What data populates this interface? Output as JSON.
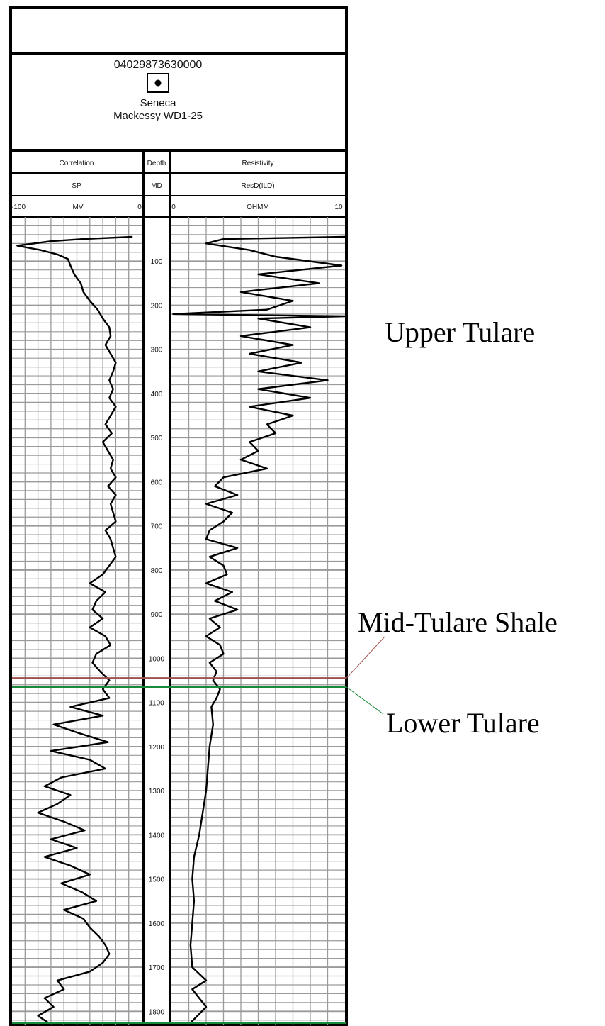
{
  "log_header": {
    "api_number": "04029873630000",
    "well_symbol": "oil-well-symbol",
    "operator": "Seneca",
    "well_name": "Mackessy WD1-25"
  },
  "tracks": {
    "correlation": {
      "title": "Correlation",
      "curve": "SP",
      "unit": "MV",
      "scale_left": "-100",
      "scale_right": "0"
    },
    "depth": {
      "title": "Depth",
      "curve": "MD"
    },
    "resistivity": {
      "title": "Resistivity",
      "curve": "ResD(ILD)",
      "unit": "OHMM",
      "scale_left": "0",
      "scale_right": "10"
    }
  },
  "zones": {
    "upper": "Upper Tulare",
    "mid_shale": "Mid-Tulare Shale",
    "lower": "Lower Tulare"
  },
  "colors": {
    "mid_shale_line": "#a0504c",
    "lower_tulare_line": "#1a8a3a",
    "grid": "#9a9a9a",
    "curve": "#000000"
  },
  "chart_data": {
    "type": "line",
    "x_axis": "depth",
    "depth_ticks": [
      100,
      200,
      300,
      400,
      500,
      600,
      700,
      800,
      900,
      1000,
      1100,
      1200,
      1300,
      1400,
      1500,
      1600,
      1700,
      1800
    ],
    "depth_range": [
      0,
      1830
    ],
    "series": [
      {
        "name": "SP",
        "unit": "MV",
        "range": [
          -100,
          0
        ],
        "points": [
          [
            45,
            -7
          ],
          [
            50,
            -45
          ],
          [
            55,
            -70
          ],
          [
            65,
            -96
          ],
          [
            75,
            -78
          ],
          [
            85,
            -65
          ],
          [
            95,
            -57
          ],
          [
            110,
            -55
          ],
          [
            130,
            -52
          ],
          [
            150,
            -47
          ],
          [
            170,
            -45
          ],
          [
            190,
            -40
          ],
          [
            210,
            -34
          ],
          [
            230,
            -30
          ],
          [
            250,
            -25
          ],
          [
            270,
            -24
          ],
          [
            290,
            -28
          ],
          [
            310,
            -24
          ],
          [
            330,
            -20
          ],
          [
            350,
            -22
          ],
          [
            370,
            -25
          ],
          [
            390,
            -22
          ],
          [
            410,
            -25
          ],
          [
            430,
            -20
          ],
          [
            450,
            -24
          ],
          [
            470,
            -28
          ],
          [
            490,
            -23
          ],
          [
            510,
            -30
          ],
          [
            530,
            -26
          ],
          [
            550,
            -22
          ],
          [
            570,
            -24
          ],
          [
            590,
            -20
          ],
          [
            610,
            -26
          ],
          [
            630,
            -20
          ],
          [
            650,
            -24
          ],
          [
            670,
            -22
          ],
          [
            690,
            -20
          ],
          [
            710,
            -28
          ],
          [
            730,
            -24
          ],
          [
            750,
            -22
          ],
          [
            770,
            -20
          ],
          [
            790,
            -25
          ],
          [
            810,
            -30
          ],
          [
            830,
            -40
          ],
          [
            850,
            -28
          ],
          [
            870,
            -35
          ],
          [
            890,
            -38
          ],
          [
            910,
            -30
          ],
          [
            930,
            -40
          ],
          [
            950,
            -28
          ],
          [
            970,
            -24
          ],
          [
            990,
            -35
          ],
          [
            1010,
            -38
          ],
          [
            1030,
            -32
          ],
          [
            1050,
            -25
          ],
          [
            1070,
            -30
          ],
          [
            1090,
            -25
          ],
          [
            1110,
            -55
          ],
          [
            1130,
            -30
          ],
          [
            1150,
            -68
          ],
          [
            1170,
            -48
          ],
          [
            1190,
            -26
          ],
          [
            1210,
            -70
          ],
          [
            1230,
            -40
          ],
          [
            1250,
            -28
          ],
          [
            1270,
            -62
          ],
          [
            1290,
            -75
          ],
          [
            1310,
            -55
          ],
          [
            1330,
            -65
          ],
          [
            1350,
            -80
          ],
          [
            1370,
            -60
          ],
          [
            1390,
            -44
          ],
          [
            1410,
            -70
          ],
          [
            1430,
            -50
          ],
          [
            1450,
            -75
          ],
          [
            1470,
            -55
          ],
          [
            1490,
            -40
          ],
          [
            1510,
            -62
          ],
          [
            1530,
            -46
          ],
          [
            1550,
            -35
          ],
          [
            1570,
            -60
          ],
          [
            1590,
            -45
          ],
          [
            1610,
            -40
          ],
          [
            1630,
            -33
          ],
          [
            1650,
            -28
          ],
          [
            1670,
            -25
          ],
          [
            1690,
            -30
          ],
          [
            1710,
            -40
          ],
          [
            1730,
            -65
          ],
          [
            1750,
            -60
          ],
          [
            1770,
            -75
          ],
          [
            1790,
            -68
          ],
          [
            1810,
            -80
          ],
          [
            1830,
            -70
          ]
        ]
      },
      {
        "name": "ResD(ILD)",
        "unit": "OHMM",
        "range": [
          0,
          10
        ],
        "points": [
          [
            45,
            10
          ],
          [
            50,
            3
          ],
          [
            60,
            2
          ],
          [
            75,
            4.5
          ],
          [
            90,
            6
          ],
          [
            110,
            9.8
          ],
          [
            130,
            5
          ],
          [
            150,
            8.5
          ],
          [
            170,
            4
          ],
          [
            190,
            7
          ],
          [
            210,
            5.5
          ],
          [
            220,
            0.1
          ],
          [
            225,
            10
          ],
          [
            230,
            5
          ],
          [
            250,
            8
          ],
          [
            270,
            4
          ],
          [
            290,
            7
          ],
          [
            310,
            4.5
          ],
          [
            330,
            7.5
          ],
          [
            350,
            5
          ],
          [
            370,
            9
          ],
          [
            390,
            5
          ],
          [
            410,
            8
          ],
          [
            430,
            4.5
          ],
          [
            450,
            7
          ],
          [
            470,
            5.5
          ],
          [
            490,
            6
          ],
          [
            510,
            4.5
          ],
          [
            530,
            5
          ],
          [
            550,
            4
          ],
          [
            570,
            5.5
          ],
          [
            590,
            3
          ],
          [
            610,
            2.5
          ],
          [
            630,
            3.8
          ],
          [
            650,
            2
          ],
          [
            670,
            3.5
          ],
          [
            690,
            3
          ],
          [
            710,
            2.2
          ],
          [
            730,
            2
          ],
          [
            750,
            3.8
          ],
          [
            770,
            2.2
          ],
          [
            790,
            3
          ],
          [
            810,
            3.2
          ],
          [
            830,
            2
          ],
          [
            850,
            3.5
          ],
          [
            870,
            2.5
          ],
          [
            890,
            3.8
          ],
          [
            910,
            2.2
          ],
          [
            930,
            2.8
          ],
          [
            950,
            2
          ],
          [
            970,
            2.8
          ],
          [
            990,
            3
          ],
          [
            1010,
            2.2
          ],
          [
            1030,
            2.6
          ],
          [
            1050,
            2.4
          ],
          [
            1070,
            2.8
          ],
          [
            1090,
            2.6
          ],
          [
            1110,
            2.3
          ],
          [
            1150,
            2.4
          ],
          [
            1200,
            2.2
          ],
          [
            1250,
            2.1
          ],
          [
            1300,
            2.0
          ],
          [
            1350,
            1.8
          ],
          [
            1400,
            1.6
          ],
          [
            1450,
            1.3
          ],
          [
            1500,
            1.2
          ],
          [
            1550,
            1.3
          ],
          [
            1600,
            1.2
          ],
          [
            1650,
            1.1
          ],
          [
            1700,
            1.2
          ],
          [
            1730,
            2.0
          ],
          [
            1750,
            1.2
          ],
          [
            1790,
            2.0
          ],
          [
            1830,
            1.0
          ]
        ]
      }
    ],
    "markers": [
      {
        "label": "Mid-Tulare Shale",
        "depth": 1045
      },
      {
        "label": "Lower Tulare",
        "depth": 1065
      }
    ]
  }
}
